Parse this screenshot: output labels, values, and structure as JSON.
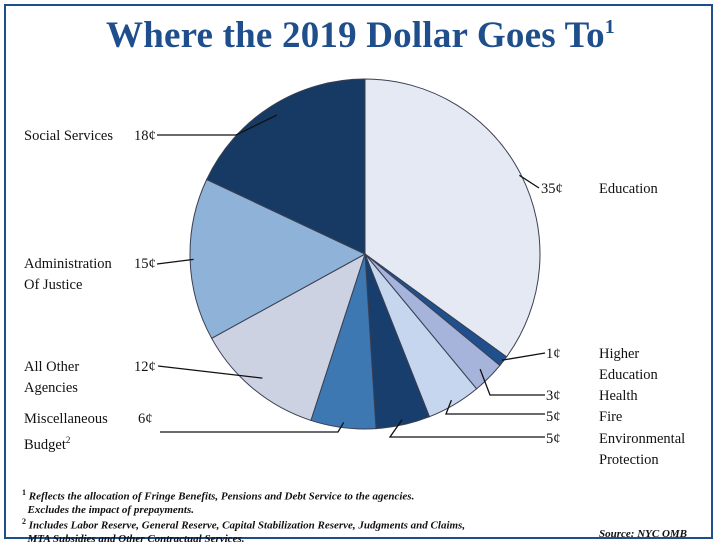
{
  "title": {
    "text": "Where the 2019 Dollar Goes To",
    "footnote_mark": "1"
  },
  "chart_data": {
    "type": "pie",
    "title": "Where the 2019 Dollar Goes To",
    "unit": "¢",
    "slices": [
      {
        "label": "Education",
        "value": 35,
        "value_label": "35¢",
        "color": "#e4e9f3"
      },
      {
        "label": "Higher Education",
        "value": 1,
        "value_label": "1¢",
        "color": "#1f4f8c"
      },
      {
        "label": "Health",
        "value": 3,
        "value_label": "3¢",
        "color": "#a6b4dc"
      },
      {
        "label": "Fire",
        "value": 5,
        "value_label": "5¢",
        "color": "#c6d6ee"
      },
      {
        "label": "Environmental Protection",
        "value": 5,
        "value_label": "5¢",
        "color": "#173e6c"
      },
      {
        "label": "Miscellaneous Budget",
        "label_sup": "2",
        "value": 6,
        "value_label": "6¢",
        "color": "#3e78b2"
      },
      {
        "label": "All Other Agencies",
        "value": 12,
        "value_label": "12¢",
        "color": "#cdd2e2"
      },
      {
        "label": "Administration Of Justice",
        "value": 15,
        "value_label": "15¢",
        "color": "#8fb2d8"
      },
      {
        "label": "Social Services",
        "value": 18,
        "value_label": "18¢",
        "color": "#163a63"
      }
    ]
  },
  "labels": {
    "social_services": "Social Services",
    "admin_justice_1": "Administration",
    "admin_justice_2": "Of Justice",
    "all_other_1": "All Other",
    "all_other_2": "Agencies",
    "misc_1": "Miscellaneous",
    "misc_2": "Budget",
    "misc_sup": "2",
    "education": "Education",
    "higher_ed_1": "Higher",
    "higher_ed_2": "Education",
    "health": "Health",
    "fire": "Fire",
    "env_1": "Environmental",
    "env_2": "Protection"
  },
  "footnotes": {
    "note1_mark": "1",
    "note1_line1": "Reflects the allocation of Fringe Benefits, Pensions and Debt Service to the agencies.",
    "note1_line2": "Excludes the impact of prepayments.",
    "note2_mark": "2",
    "note2_line1": "Includes Labor Reserve, General Reserve, Capital Stabilization Reserve, Judgments and Claims,",
    "note2_line2": "MTA Subsidies and Other Contractual Services.",
    "source": "Source: NYC OMB"
  },
  "colors": {
    "title": "#1f4e8c",
    "frame": "#1f4e8c",
    "slice_stroke": "#3a3f52",
    "leader": "#111111"
  }
}
